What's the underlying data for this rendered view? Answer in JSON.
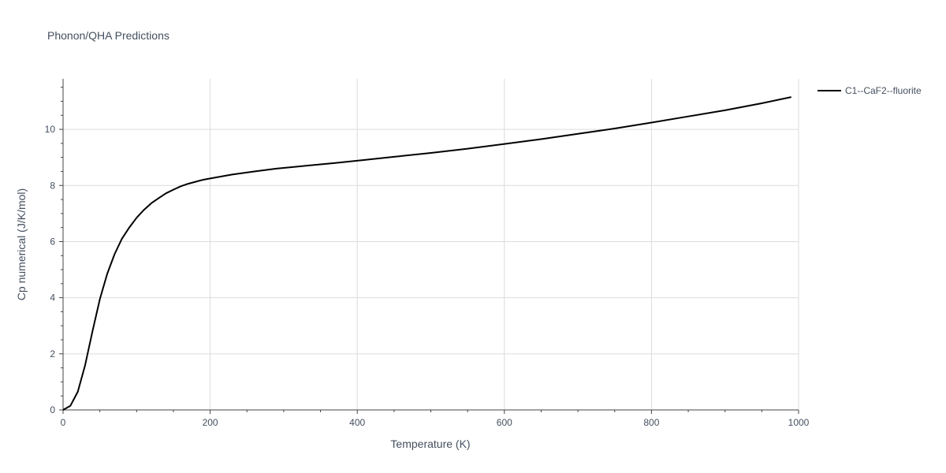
{
  "chart_data": {
    "type": "line",
    "title": "Phonon/QHA Predictions",
    "xlabel": "Temperature (K)",
    "ylabel": "Cp numerical (J/K/mol)",
    "xlim": [
      0,
      1000
    ],
    "ylim": [
      0,
      11.8
    ],
    "xticks": [
      0,
      200,
      400,
      600,
      800,
      1000
    ],
    "yticks": [
      0,
      2,
      4,
      6,
      8,
      10
    ],
    "grid": true,
    "legend_position": "top-right",
    "series": [
      {
        "name": "C1--CaF2--fluorite",
        "color": "#000000",
        "x": [
          0,
          10,
          20,
          30,
          40,
          50,
          60,
          70,
          80,
          90,
          100,
          110,
          120,
          130,
          140,
          150,
          160,
          170,
          180,
          190,
          200,
          230,
          260,
          290,
          330,
          370,
          410,
          450,
          500,
          550,
          600,
          650,
          700,
          750,
          800,
          850,
          900,
          950,
          990
        ],
        "y": [
          0,
          0.15,
          0.65,
          1.6,
          2.8,
          3.95,
          4.85,
          5.55,
          6.1,
          6.5,
          6.85,
          7.13,
          7.37,
          7.55,
          7.72,
          7.85,
          7.97,
          8.06,
          8.13,
          8.2,
          8.25,
          8.39,
          8.5,
          8.6,
          8.7,
          8.8,
          8.91,
          9.02,
          9.16,
          9.31,
          9.48,
          9.65,
          9.84,
          10.03,
          10.24,
          10.46,
          10.68,
          10.93,
          11.15
        ]
      }
    ]
  }
}
